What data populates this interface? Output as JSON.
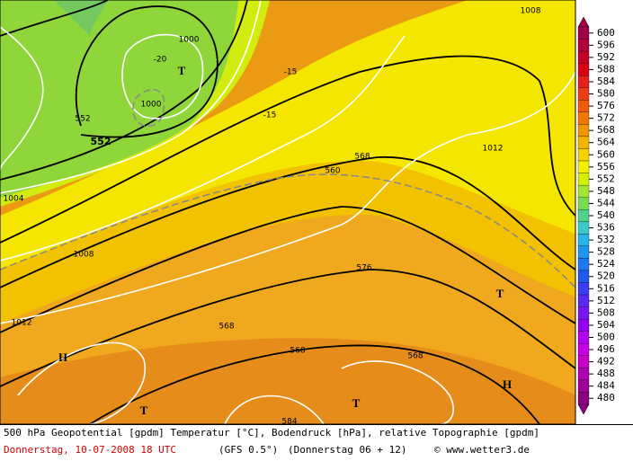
{
  "map": {
    "labels": [
      "1000",
      "-20",
      "T",
      "1000",
      "552",
      "552",
      "1008",
      "-15",
      "-15",
      "568",
      "560",
      "1012",
      "1004",
      "1008",
      "576",
      "T",
      "1012",
      "568",
      "H",
      "568",
      "568",
      "T",
      "H",
      "T",
      "584"
    ]
  },
  "colorbar": {
    "levels": [
      600,
      596,
      592,
      588,
      584,
      580,
      576,
      572,
      568,
      564,
      560,
      556,
      552,
      548,
      544,
      540,
      536,
      532,
      528,
      524,
      520,
      516,
      512,
      508,
      504,
      500,
      496,
      492,
      488,
      484,
      480
    ],
    "colors": [
      "#a0004a",
      "#b4003c",
      "#c80028",
      "#dc0014",
      "#e61e1e",
      "#f03c14",
      "#f05a0a",
      "#f07800",
      "#f09600",
      "#f5b400",
      "#f5d200",
      "#f5f000",
      "#d2f000",
      "#a0e632",
      "#78dc50",
      "#50d28c",
      "#3cc8c8",
      "#28b4e6",
      "#1e96f0",
      "#1e78f0",
      "#1e5af0",
      "#3c3cf0",
      "#5a28f0",
      "#7814f0",
      "#9600f0",
      "#b400f0",
      "#c800e6",
      "#c800c8",
      "#b400b4",
      "#a0009a",
      "#8c0082"
    ]
  },
  "footer": {
    "line1": "500 hPa Geopotential [gpdm] Temperatur [°C], Bodendruck [hPa], relative Topographie [gpdm]",
    "date": "Donnerstag, 10-07-2008  18 UTC",
    "model": "(GFS 0.5°)",
    "run": "(Donnerstag 06 + 12)",
    "credit": "© www.wetter3.de"
  }
}
